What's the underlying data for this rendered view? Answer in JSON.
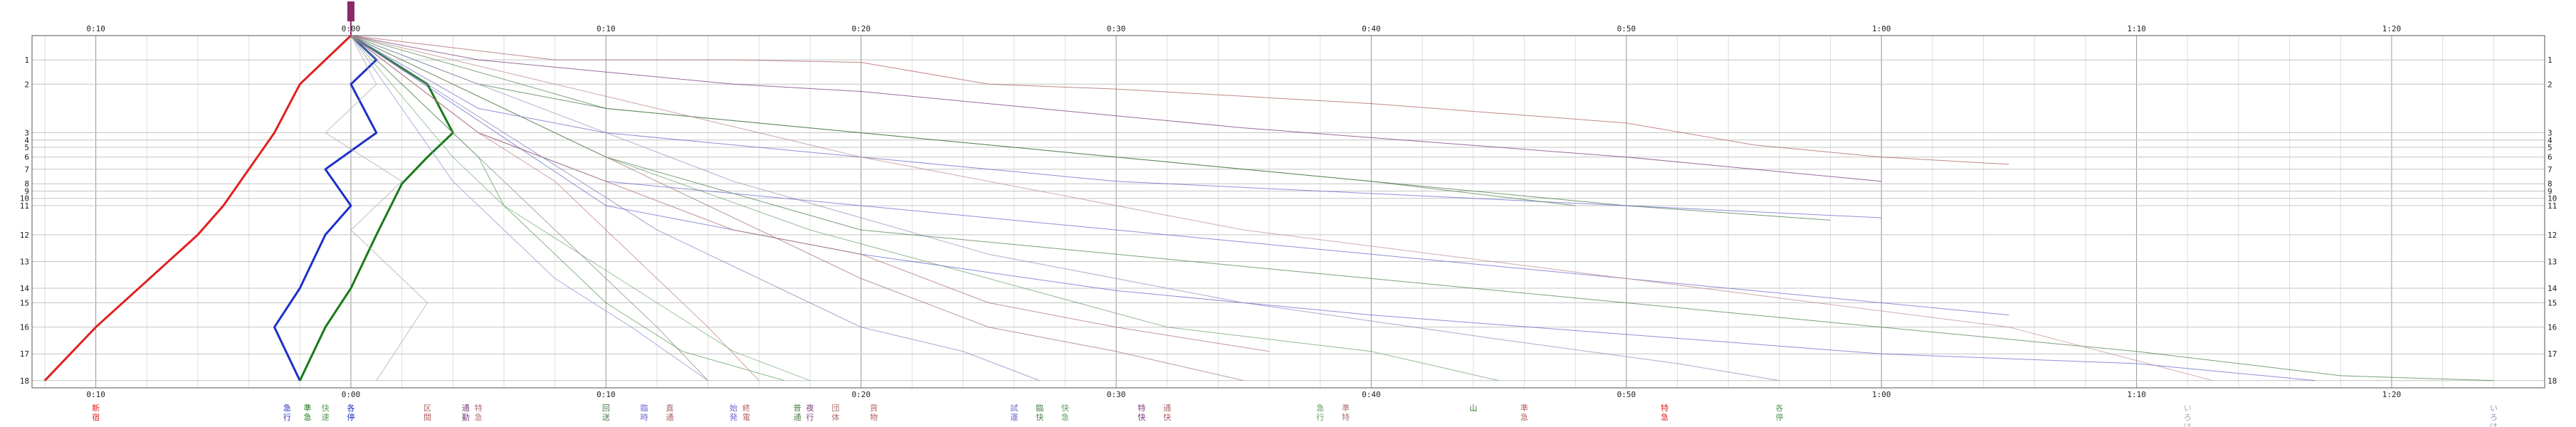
{
  "chart_data": {
    "type": "line",
    "title": "",
    "xlabel": "",
    "ylabel": "",
    "x_ticks": [
      "0:10",
      "0:00",
      "0:10",
      "0:20",
      "0:30",
      "0:40",
      "0:50",
      "1:00",
      "1:10",
      "1:20"
    ],
    "x_tick_minutes": [
      -10,
      0,
      10,
      20,
      30,
      40,
      50,
      60,
      70,
      80
    ],
    "xlim": [
      -12.5,
      86
    ],
    "rows": [
      "1",
      "2",
      "3",
      "4",
      "5",
      "6",
      "7",
      "8",
      "9",
      "10",
      "11",
      "12",
      "13",
      "14",
      "15",
      "16",
      "17",
      "18"
    ],
    "row_positions": [
      1,
      2,
      4,
      4.3,
      4.6,
      5.0,
      5.5,
      6.1,
      6.4,
      6.7,
      7.0,
      8.2,
      9.3,
      10.4,
      11.0,
      12.0,
      13.1,
      14.2
    ],
    "ylim": [
      0,
      14.5
    ],
    "grid": true,
    "series": [
      {
        "color": "#e02020",
        "width": 3,
        "x": [
          0,
          -1,
          -2,
          -3,
          -4,
          -5,
          -6,
          -10,
          -12
        ],
        "y": [
          0,
          1,
          2,
          4,
          5.5,
          7,
          8.2,
          12,
          14.2
        ]
      },
      {
        "color": "#1f2fc8",
        "width": 3,
        "x": [
          0,
          1,
          0,
          1,
          -1,
          0,
          -1,
          -2,
          -3,
          -2
        ],
        "y": [
          0,
          1,
          2,
          4,
          5.5,
          7,
          8.2,
          10.4,
          12,
          14.2
        ]
      },
      {
        "color": "#1a7a1a",
        "width": 3,
        "x": [
          0,
          3,
          4,
          3,
          2,
          1,
          0,
          -1,
          -2
        ],
        "y": [
          0,
          2,
          4,
          5,
          6.1,
          8.2,
          10.4,
          12,
          14.2
        ]
      },
      {
        "color": "#b06060",
        "x": [
          0,
          8,
          15,
          20,
          25,
          30,
          35,
          40,
          45,
          50,
          55,
          60,
          65
        ],
        "y": [
          0,
          1,
          1,
          1.1,
          2,
          2.2,
          2.5,
          2.8,
          3.2,
          3.6,
          4.5,
          5.0,
          5.3
        ]
      },
      {
        "color": "#7a3a7a",
        "x": [
          0,
          5,
          10,
          15,
          20,
          25,
          30,
          35,
          40,
          45,
          50,
          55,
          60
        ],
        "y": [
          0,
          1,
          1.5,
          2,
          2.3,
          2.8,
          3.3,
          3.8,
          4.2,
          4.6,
          5,
          5.5,
          6
        ]
      },
      {
        "color": "#4a7a4a",
        "x": [
          0,
          5,
          10,
          20,
          30,
          40,
          50,
          58
        ],
        "y": [
          0,
          2,
          3,
          4,
          5,
          6,
          7,
          7.6
        ]
      },
      {
        "color": "#6a6acc",
        "x": [
          0,
          5,
          10,
          20,
          30,
          40,
          50,
          60
        ],
        "y": [
          0,
          3,
          4,
          5,
          6,
          6.5,
          7,
          7.5
        ]
      },
      {
        "color": "#508050",
        "x": [
          0,
          10,
          20,
          30,
          40,
          48
        ],
        "y": [
          0,
          3,
          4,
          5,
          6,
          7
        ]
      },
      {
        "color": "#6a6acc",
        "x": [
          0,
          5,
          10,
          20,
          30,
          40,
          50,
          60,
          65
        ],
        "y": [
          0,
          4,
          6,
          7,
          8,
          9,
          10,
          11,
          11.5
        ]
      },
      {
        "color": "#508050",
        "x": [
          0,
          10,
          20,
          30,
          40,
          50,
          60,
          70,
          78,
          84
        ],
        "y": [
          0,
          5,
          8,
          9,
          10,
          11,
          12,
          13,
          14,
          14.2
        ]
      },
      {
        "color": "#6a6acc",
        "x": [
          0,
          10,
          20,
          30,
          40,
          50,
          60,
          70,
          77
        ],
        "y": [
          0,
          7,
          9,
          10.5,
          11.5,
          12.3,
          13.1,
          13.5,
          14.2
        ]
      },
      {
        "color": "#b07070",
        "x": [
          0,
          5,
          10,
          15,
          20,
          25,
          30,
          36
        ],
        "y": [
          0,
          4,
          6,
          8,
          9,
          11,
          12,
          13
        ]
      },
      {
        "color": "#8a8a8a",
        "x": [
          0,
          2,
          4,
          6,
          8,
          10,
          12,
          14
        ],
        "y": [
          0,
          2,
          4,
          6,
          8,
          10,
          12,
          14.2
        ]
      },
      {
        "color": "#5a9a5a",
        "x": [
          0,
          3,
          5,
          6,
          8,
          10,
          13,
          17
        ],
        "y": [
          0,
          3,
          5,
          7,
          9,
          11,
          13,
          14.2
        ]
      },
      {
        "color": "#9090d0",
        "x": [
          0,
          2,
          4,
          6,
          8,
          11,
          14
        ],
        "y": [
          0,
          3,
          6,
          8,
          10,
          12,
          14.2
        ]
      },
      {
        "color": "#c08080",
        "x": [
          0,
          5,
          8,
          10,
          12,
          14,
          16
        ],
        "y": [
          0,
          4,
          6,
          8,
          10,
          12,
          14.2
        ]
      },
      {
        "color": "#7ab07a",
        "x": [
          0,
          4,
          6,
          9,
          12,
          15,
          18
        ],
        "y": [
          0,
          5,
          7,
          9,
          11,
          13,
          14.2
        ]
      },
      {
        "color": "#8080c0",
        "x": [
          0,
          6,
          9,
          12,
          16,
          20,
          24,
          27
        ],
        "y": [
          0,
          4,
          6,
          8,
          10,
          12,
          13,
          14.2
        ]
      },
      {
        "color": "#a07070",
        "x": [
          0,
          8,
          12,
          16,
          20,
          25,
          30,
          35
        ],
        "y": [
          0,
          4,
          6,
          8,
          10,
          12,
          13,
          14.2
        ]
      },
      {
        "color": "#70a070",
        "x": [
          0,
          10,
          18,
          25,
          32,
          40,
          45
        ],
        "y": [
          0,
          5,
          8,
          10,
          12,
          13,
          14.2
        ]
      },
      {
        "color": "#9090c0",
        "x": [
          0,
          15,
          25,
          35,
          45,
          52,
          56
        ],
        "y": [
          0,
          6,
          9,
          11,
          12.5,
          13.5,
          14.2
        ]
      },
      {
        "color": "#aaaaaa",
        "x": [
          0,
          1,
          -1,
          2,
          0,
          3,
          1
        ],
        "y": [
          0,
          2,
          4,
          6,
          8,
          11,
          14.2
        ]
      },
      {
        "color": "#c09090",
        "x": [
          0,
          20,
          35,
          50,
          65,
          73
        ],
        "y": [
          0,
          5,
          8,
          10,
          12,
          14.2
        ]
      }
    ],
    "bottom_labels": [
      {
        "minute": -10,
        "text": "新宿",
        "color": "#e02020"
      },
      {
        "minute": -2.5,
        "text": "急行",
        "color": "#1f2fc8"
      },
      {
        "minute": -1.7,
        "text": "準急",
        "color": "#1a7a1a"
      },
      {
        "minute": -1,
        "text": "快速",
        "color": "#5a9a5a"
      },
      {
        "minute": 0,
        "text": "各停",
        "color": "#1f2fc8"
      },
      {
        "minute": 3,
        "text": "区間",
        "color": "#b06060"
      },
      {
        "minute": 4.5,
        "text": "通勤",
        "color": "#7a3a7a"
      },
      {
        "minute": 5,
        "text": "特急",
        "color": "#b07070"
      },
      {
        "minute": 10,
        "text": "回送",
        "color": "#4a7a4a"
      },
      {
        "minute": 11.5,
        "text": "臨時",
        "color": "#6a6acc"
      },
      {
        "minute": 12.5,
        "text": "直通",
        "color": "#b06060"
      },
      {
        "minute": 15,
        "text": "始発",
        "color": "#6a6acc"
      },
      {
        "minute": 15.5,
        "text": "終電",
        "color": "#b06060"
      },
      {
        "minute": 17.5,
        "text": "普通",
        "color": "#508050"
      },
      {
        "minute": 18,
        "text": "夜行",
        "color": "#7a3a7a"
      },
      {
        "minute": 19,
        "text": "団体",
        "color": "#b07070"
      },
      {
        "minute": 20.5,
        "text": "貨物",
        "color": "#b06060"
      },
      {
        "minute": 26,
        "text": "試運",
        "color": "#6a6acc"
      },
      {
        "minute": 27,
        "text": "臨快",
        "color": "#508050"
      },
      {
        "minute": 28,
        "text": "快急",
        "color": "#5a9a5a"
      },
      {
        "minute": 31,
        "text": "特快",
        "color": "#7a3a7a"
      },
      {
        "minute": 32,
        "text": "通快",
        "color": "#b06060"
      },
      {
        "minute": 38,
        "text": "急行",
        "color": "#5a9a5a"
      },
      {
        "minute": 39,
        "text": "準特",
        "color": "#b07070"
      },
      {
        "minute": 44,
        "text": "山",
        "color": "#1a7a1a"
      },
      {
        "minute": 46,
        "text": "準急",
        "color": "#b06060"
      },
      {
        "minute": 51.5,
        "text": "特急",
        "color": "#e02020"
      },
      {
        "minute": 56,
        "text": "各停",
        "color": "#5a9a5a"
      },
      {
        "minute": 72,
        "text": "いろは",
        "color": "#aaaaaa"
      },
      {
        "minute": 84,
        "text": "いろは",
        "color": "#9090c0"
      }
    ],
    "top_marker_color": "#8a2a6a"
  }
}
